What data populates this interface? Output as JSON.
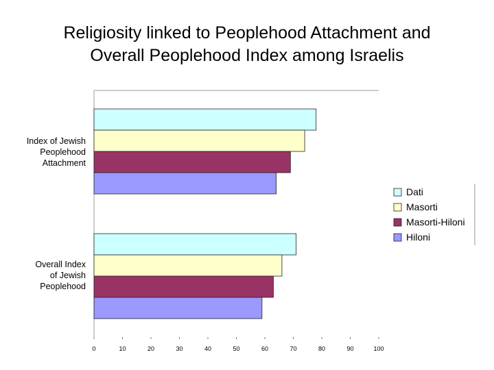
{
  "chart_data": {
    "type": "bar",
    "orientation": "horizontal",
    "title_lines": [
      "Religiosity linked to Peoplehood Attachment and",
      "Overall Peoplehood Index among Israelis"
    ],
    "categories": [
      "Index of Jewish Peoplehood Attachment",
      "Overall Index of Jewish Peoplehood"
    ],
    "category_label_lines": [
      [
        "Index of Jewish",
        "Peoplehood",
        "Attachment"
      ],
      [
        "Overall Index",
        "of Jewish",
        "Peoplehood"
      ]
    ],
    "series": [
      {
        "name": "Dati",
        "color": "#ccffff",
        "values": [
          78,
          71
        ]
      },
      {
        "name": "Masorti",
        "color": "#ffffcc",
        "values": [
          74,
          66
        ]
      },
      {
        "name": "Masorti-Hiloni",
        "color": "#993366",
        "values": [
          69,
          63
        ]
      },
      {
        "name": "Hiloni",
        "color": "#9999ff",
        "values": [
          64,
          59
        ]
      }
    ],
    "xlim": [
      0,
      100
    ],
    "xticks": [
      0,
      10,
      20,
      30,
      40,
      50,
      60,
      70,
      80,
      90,
      100
    ],
    "xtick_labels": [
      "0",
      "10",
      "20",
      "30",
      "40",
      "50",
      "60",
      "70",
      "80",
      "90",
      "100"
    ],
    "legend_position": "right",
    "grid": false
  }
}
